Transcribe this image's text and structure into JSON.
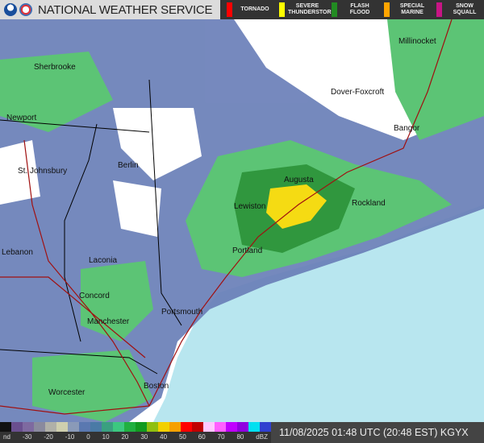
{
  "header": {
    "title": "NATIONAL WEATHER SERVICE",
    "logos": [
      "noaa-logo",
      "nws-logo"
    ]
  },
  "warnings": [
    {
      "label": "TORNADO",
      "color": "#ff0000"
    },
    {
      "label": "SEVERE THUNDERSTORM",
      "color": "#ffff00"
    },
    {
      "label": "FLASH FLOOD",
      "color": "#228b22"
    },
    {
      "label": "SPECIAL MARINE",
      "color": "#ffa500"
    },
    {
      "label": "SNOW SQUALL",
      "color": "#c71585"
    }
  ],
  "map": {
    "cities": [
      "Millinocket",
      "Sherbrooke",
      "Dover-Foxcroft",
      "Newport",
      "Bangor",
      "St. Johnsbury",
      "Berlin",
      "Augusta",
      "Rockland",
      "Lewiston",
      "Portland",
      "Lebanon",
      "Laconia",
      "Concord",
      "Portsmouth",
      "Manchester",
      "Worcester",
      "Boston"
    ],
    "colors": {
      "ocean": "#b8e6ef",
      "land": "#ffffff",
      "light_rain": "#6a7fb8",
      "moderate": "#4fbf6a",
      "heavy": "#1f8f2e",
      "intense": "#f5d800",
      "roads": "#a01010"
    }
  },
  "legend": {
    "ticks": [
      "nd",
      "-30",
      "-20",
      "-10",
      "0",
      "10",
      "20",
      "30",
      "40",
      "50",
      "60",
      "70",
      "80",
      "dBZ"
    ],
    "colors": [
      "#111111",
      "#6a4f8f",
      "#7e6aa0",
      "#8a8a9e",
      "#b0b0a8",
      "#cfcfae",
      "#8a9ab8",
      "#5a78b0",
      "#4a7aa6",
      "#3aa080",
      "#3cc880",
      "#20b040",
      "#129a20",
      "#90c010",
      "#f2d000",
      "#f6a000",
      "#ff0000",
      "#c00000",
      "#ffc8ff",
      "#ff60ff",
      "#c000ff",
      "#9000e0",
      "#00e0f0",
      "#3040d0"
    ]
  },
  "timestamp": "11/08/2025 01:48 UTC (20:48 EST) KGYX"
}
